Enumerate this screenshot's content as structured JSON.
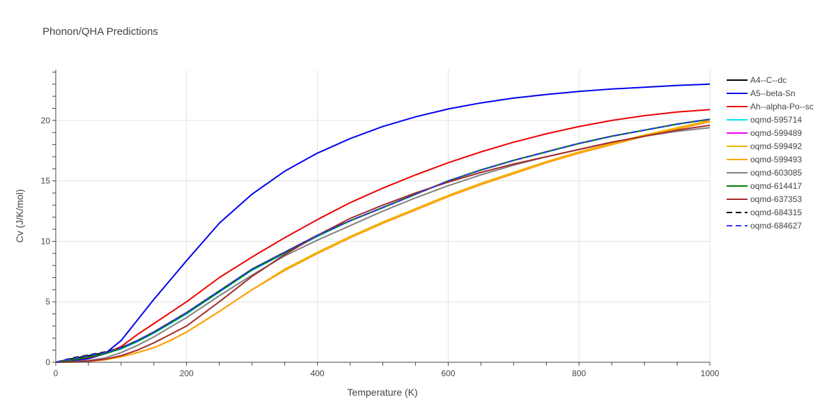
{
  "chart_data": {
    "type": "line",
    "title": "Phonon/QHA Predictions",
    "xlabel": "Temperature (K)",
    "ylabel": "Cv (J/K/mol)",
    "xlim": [
      0,
      1000
    ],
    "ylim": [
      0,
      24.2
    ],
    "xticks": [
      "0",
      "200",
      "400",
      "600",
      "800",
      "1000"
    ],
    "yticks": [
      "0",
      "5",
      "10",
      "15",
      "20"
    ],
    "grid": true,
    "legend_position": "right",
    "x": [
      0,
      25,
      50,
      75,
      100,
      125,
      150,
      175,
      200,
      250,
      300,
      350,
      400,
      450,
      500,
      550,
      600,
      650,
      700,
      750,
      800,
      850,
      900,
      950,
      1000
    ],
    "series": [
      {
        "name": "A4--C--dc",
        "color": "#000000",
        "dash": "solid",
        "values": [
          0,
          0.3,
          0.55,
          0.8,
          1.2,
          1.8,
          2.5,
          3.3,
          4.1,
          5.9,
          7.7,
          9.1,
          10.5,
          11.7,
          12.8,
          13.9,
          15.0,
          15.9,
          16.7,
          17.4,
          18.1,
          18.7,
          19.2,
          19.7,
          20.1
        ]
      },
      {
        "name": "A5--beta-Sn",
        "color": "#0000ee",
        "dash": "solid",
        "values": [
          0,
          0.1,
          0.3,
          0.7,
          1.8,
          3.5,
          5.2,
          6.8,
          8.4,
          11.5,
          13.9,
          15.8,
          17.3,
          18.5,
          19.5,
          20.3,
          20.95,
          21.45,
          21.85,
          22.15,
          22.4,
          22.6,
          22.75,
          22.9,
          23.0
        ]
      },
      {
        "name": "Ah--alpha-Po--sc",
        "color": "#ee0000",
        "dash": "solid",
        "values": [
          0,
          0.2,
          0.4,
          0.7,
          1.3,
          2.3,
          3.2,
          4.1,
          5.0,
          7.0,
          8.7,
          10.3,
          11.8,
          13.2,
          14.4,
          15.5,
          16.5,
          17.4,
          18.2,
          18.9,
          19.5,
          20.0,
          20.4,
          20.7,
          20.9
        ]
      },
      {
        "name": "oqmd-595714",
        "color": "#00e5ee",
        "dash": "solid",
        "values": [
          0,
          0.2,
          0.45,
          0.7,
          1.1,
          1.7,
          2.4,
          3.2,
          4.0,
          5.8,
          7.6,
          9.0,
          10.4,
          11.7,
          12.8,
          13.9,
          15.0,
          15.9,
          16.7,
          17.4,
          18.1,
          18.7,
          19.2,
          19.7,
          20.1
        ]
      },
      {
        "name": "oqmd-599489",
        "color": "#ee00ee",
        "dash": "solid",
        "values": [
          0,
          0.02,
          0.08,
          0.2,
          0.45,
          0.8,
          1.2,
          1.8,
          2.5,
          4.2,
          6.0,
          7.6,
          9.0,
          10.3,
          11.5,
          12.6,
          13.7,
          14.7,
          15.6,
          16.5,
          17.3,
          18.0,
          18.7,
          19.3,
          19.9
        ]
      },
      {
        "name": "oqmd-599492",
        "color": "#f0b400",
        "dash": "solid",
        "values": [
          0,
          0.02,
          0.08,
          0.2,
          0.45,
          0.8,
          1.2,
          1.8,
          2.5,
          4.2,
          6.0,
          7.7,
          9.1,
          10.4,
          11.6,
          12.7,
          13.8,
          14.8,
          15.7,
          16.6,
          17.4,
          18.1,
          18.8,
          19.4,
          20.0
        ]
      },
      {
        "name": "oqmd-599493",
        "color": "#ffa500",
        "dash": "solid",
        "values": [
          0,
          0.02,
          0.08,
          0.2,
          0.45,
          0.8,
          1.2,
          1.8,
          2.5,
          4.2,
          6.0,
          7.6,
          9.0,
          10.3,
          11.5,
          12.6,
          13.7,
          14.7,
          15.6,
          16.5,
          17.3,
          18.0,
          18.7,
          19.3,
          19.9
        ]
      },
      {
        "name": "oqmd-603085",
        "color": "#808080",
        "dash": "solid",
        "values": [
          0,
          0.05,
          0.15,
          0.35,
          0.8,
          1.4,
          2.1,
          2.9,
          3.7,
          5.5,
          7.2,
          8.8,
          10.1,
          11.3,
          12.5,
          13.6,
          14.6,
          15.5,
          16.3,
          17.0,
          17.6,
          18.2,
          18.7,
          19.1,
          19.4
        ]
      },
      {
        "name": "oqmd-614417",
        "color": "#008000",
        "dash": "solid",
        "values": [
          0,
          0.2,
          0.45,
          0.7,
          1.15,
          1.75,
          2.45,
          3.25,
          4.05,
          5.85,
          7.65,
          9.05,
          10.45,
          11.7,
          12.8,
          13.9,
          15.0,
          15.9,
          16.7,
          17.4,
          18.1,
          18.7,
          19.2,
          19.7,
          20.1
        ]
      },
      {
        "name": "oqmd-637353",
        "color": "#a52a2a",
        "dash": "solid",
        "values": [
          0,
          0.03,
          0.1,
          0.25,
          0.55,
          1.0,
          1.6,
          2.3,
          3.0,
          5.0,
          7.1,
          8.9,
          10.5,
          11.9,
          13.0,
          14.0,
          14.9,
          15.7,
          16.4,
          17.0,
          17.6,
          18.2,
          18.7,
          19.2,
          19.6
        ]
      },
      {
        "name": "oqmd-684315",
        "color": "#000000",
        "dash": "dash",
        "values": [
          0,
          0.35,
          0.6,
          0.85,
          1.2,
          1.8,
          2.5,
          3.3,
          4.1,
          5.9,
          7.7,
          9.1,
          10.5,
          11.7,
          12.8,
          13.9,
          15.0,
          15.9,
          16.7,
          17.4,
          18.1,
          18.7,
          19.2,
          19.7,
          20.1
        ]
      },
      {
        "name": "oqmd-684627",
        "color": "#3333ff",
        "dash": "dash",
        "values": [
          0,
          0.3,
          0.55,
          0.8,
          1.2,
          1.8,
          2.5,
          3.3,
          4.1,
          5.9,
          7.7,
          9.1,
          10.5,
          11.7,
          12.8,
          13.9,
          15.0,
          15.9,
          16.7,
          17.4,
          18.1,
          18.7,
          19.2,
          19.7,
          20.1
        ]
      }
    ]
  }
}
